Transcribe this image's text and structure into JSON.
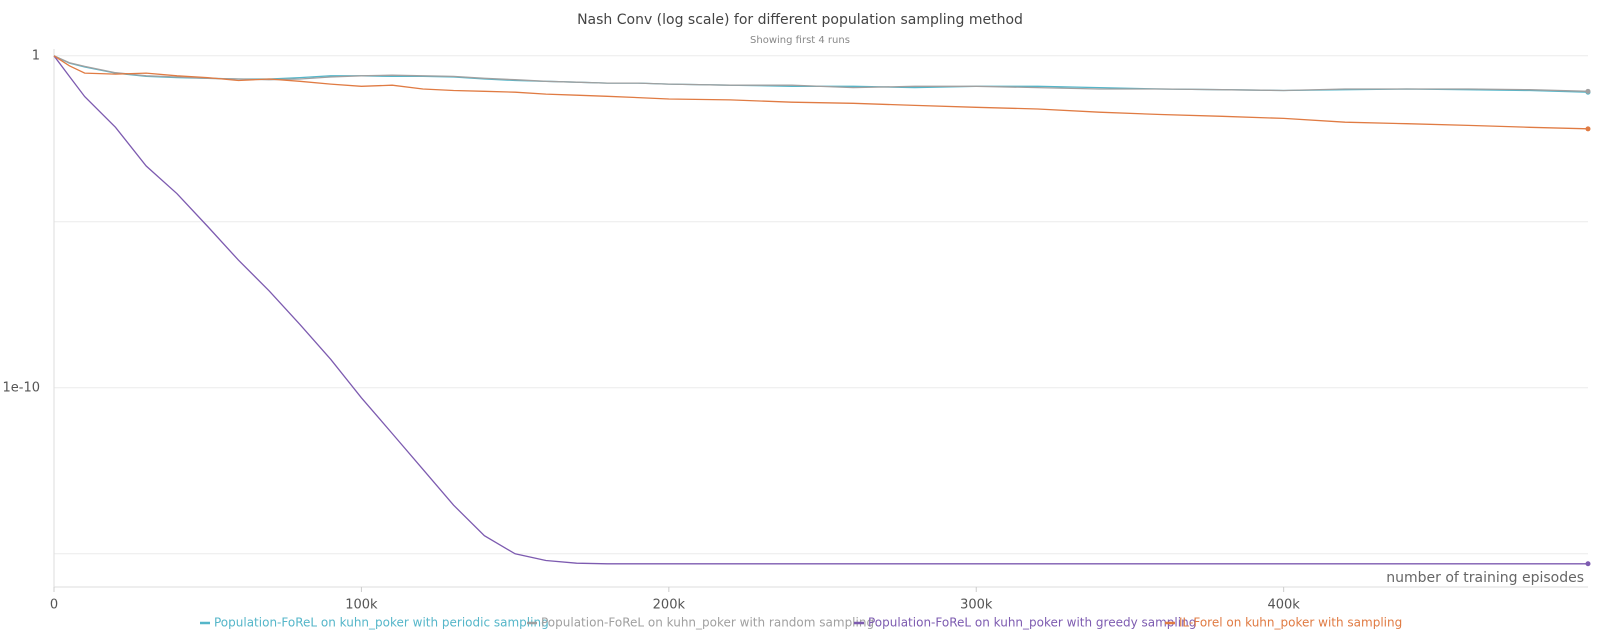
{
  "chart_data": {
    "type": "line",
    "title": "Nash Conv (log scale) for different population sampling method",
    "subtitle": "Showing first 4 runs",
    "x_label": "number of training episodes",
    "log_y": true,
    "grid": true,
    "legend": "bottom",
    "x": [
      0,
      5000,
      10000,
      20000,
      30000,
      40000,
      50000,
      60000,
      70000,
      80000,
      90000,
      100000,
      110000,
      120000,
      130000,
      140000,
      150000,
      160000,
      170000,
      180000,
      190000,
      200000,
      220000,
      240000,
      260000,
      280000,
      300000,
      320000,
      340000,
      360000,
      380000,
      400000,
      420000,
      440000,
      460000,
      480000,
      499000
    ],
    "xlim": [
      0,
      499000
    ],
    "xticks": [
      0,
      {
        "value": 100000,
        "label": "100k"
      },
      {
        "value": 200000,
        "label": "200k"
      },
      {
        "value": 300000,
        "label": "300k"
      },
      {
        "value": 400000,
        "label": "400k"
      }
    ],
    "ylim": [
      1e-16,
      1.6
    ],
    "yticks": [
      1,
      1e-10
    ],
    "grid_lines": [
      1e-05,
      1e-15
    ],
    "series": [
      {
        "name": "Population-FoReL on kuhn_poker with periodic sampling",
        "color": "#55b6c9",
        "values": [
          1,
          0.6,
          0.46,
          0.3,
          0.24,
          0.22,
          0.21,
          0.2,
          0.2,
          0.22,
          0.25,
          0.25,
          0.24,
          0.24,
          0.23,
          0.2,
          0.18,
          0.17,
          0.16,
          0.15,
          0.15,
          0.14,
          0.13,
          0.12,
          0.12,
          0.11,
          0.12,
          0.12,
          0.11,
          0.1,
          0.095,
          0.09,
          0.095,
          0.1,
          0.095,
          0.09,
          0.08
        ]
      },
      {
        "name": "Population-FoReL on kuhn_poker with random sampling",
        "color": "#a0a0a0",
        "values": [
          1,
          0.62,
          0.48,
          0.31,
          0.25,
          0.23,
          0.21,
          0.2,
          0.19,
          0.2,
          0.23,
          0.25,
          0.26,
          0.25,
          0.24,
          0.21,
          0.19,
          0.17,
          0.16,
          0.15,
          0.15,
          0.14,
          0.13,
          0.13,
          0.11,
          0.12,
          0.12,
          0.11,
          0.1,
          0.1,
          0.095,
          0.09,
          0.1,
          0.1,
          0.1,
          0.095,
          0.085
        ]
      },
      {
        "name": "Population-FoReL on kuhn_poker with greedy sampling",
        "color": "#7d5bb0",
        "values": [
          1,
          0.24,
          0.059,
          0.007,
          0.00048,
          7e-05,
          7.2e-06,
          7e-07,
          8.3e-08,
          8.1e-09,
          7.2e-10,
          5e-11,
          4.2e-12,
          3.5e-13,
          2.9e-14,
          3.5e-15,
          1e-15,
          6.3e-16,
          5.2e-16,
          5e-16,
          5e-16,
          5e-16,
          5e-16,
          5e-16,
          5e-16,
          5e-16,
          5e-16,
          5e-16,
          5e-16,
          5e-16,
          5e-16,
          5e-16,
          5e-16,
          5e-16,
          5e-16,
          5e-16,
          5e-16
        ]
      },
      {
        "name": "IL-Forel on kuhn_poker with sampling",
        "color": "#e07b43",
        "values": [
          1,
          0.5,
          0.3,
          0.28,
          0.3,
          0.25,
          0.22,
          0.18,
          0.2,
          0.17,
          0.14,
          0.12,
          0.13,
          0.1,
          0.09,
          0.085,
          0.08,
          0.07,
          0.065,
          0.06,
          0.055,
          0.05,
          0.047,
          0.04,
          0.037,
          0.032,
          0.028,
          0.025,
          0.02,
          0.017,
          0.015,
          0.013,
          0.01,
          0.009,
          0.008,
          0.007,
          0.0063
        ]
      }
    ]
  }
}
